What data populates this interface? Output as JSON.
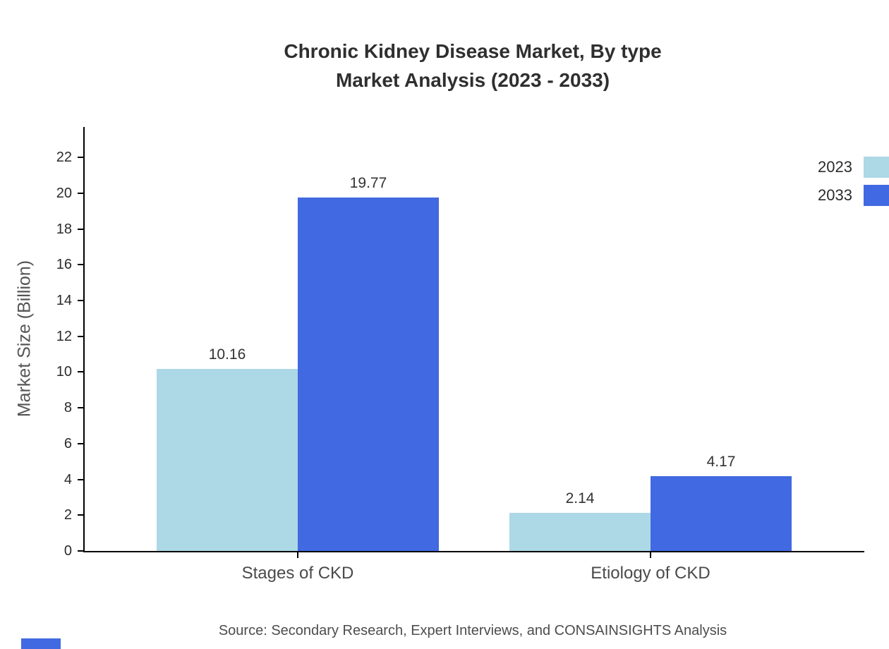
{
  "title": {
    "line1": "Chronic Kidney Disease Market, By type",
    "line2": "Market Analysis (2023 - 2033)"
  },
  "chart_data": {
    "type": "bar",
    "categories": [
      "Stages of CKD",
      "Etiology of CKD"
    ],
    "series": [
      {
        "name": "2023",
        "color": "#ADD8E6",
        "values": [
          10.16,
          2.14
        ]
      },
      {
        "name": "2033",
        "color": "#4169E1",
        "values": [
          19.77,
          4.17
        ]
      }
    ],
    "title": "Chronic Kidney Disease Market, By type Market Analysis (2023 - 2033)",
    "xlabel": "",
    "ylabel": "Market Size (Billion)",
    "ylim": [
      0,
      23.7
    ],
    "yticks": [
      0,
      2,
      4,
      6,
      8,
      10,
      12,
      14,
      16,
      18,
      20,
      22
    ],
    "grid": false,
    "legend_position": "top-right",
    "value_labels": true
  },
  "source": "Source: Secondary Research, Expert Interviews, and CONSAINSIGHTS Analysis",
  "colors": {
    "accent": "#4169E1",
    "light_series": "#ADD8E6",
    "axis": "#000000",
    "text": "#2f2f2f",
    "muted": "#555555"
  }
}
